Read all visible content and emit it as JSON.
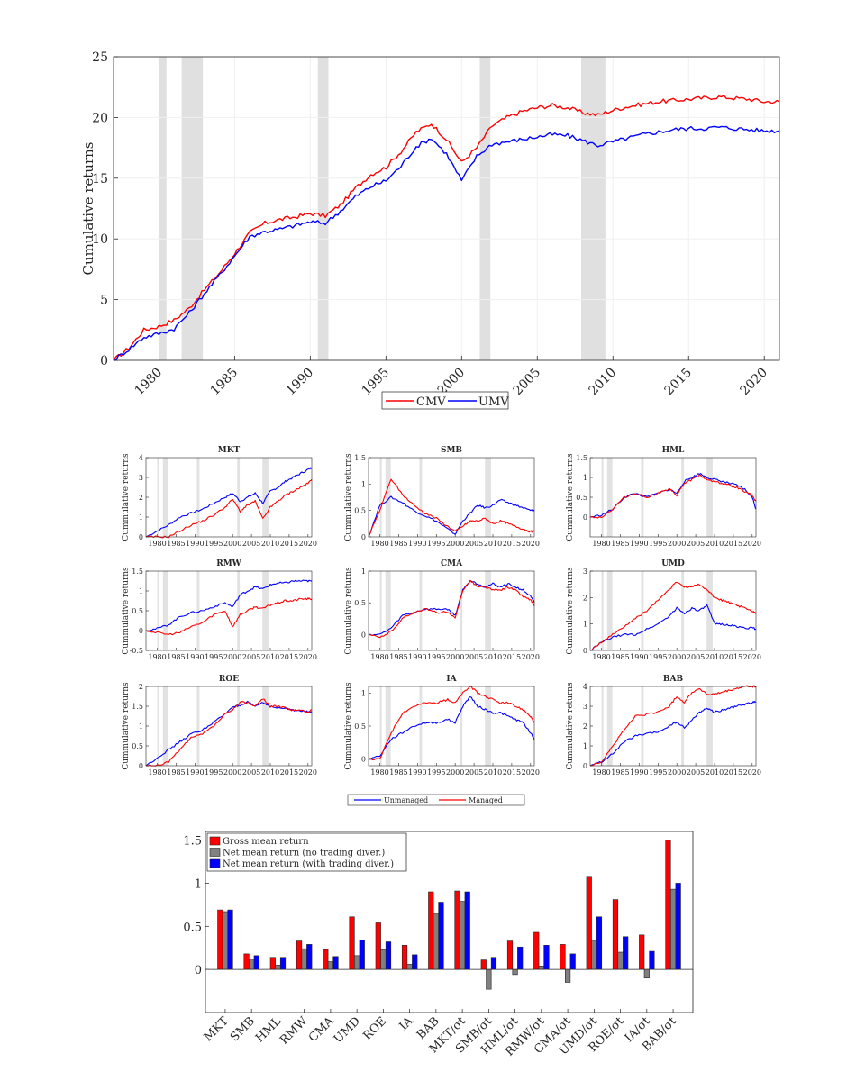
{
  "chart_data": [
    {
      "id": "top",
      "type": "line",
      "title": "",
      "xlabel": "",
      "ylabel": "Cumulative returns",
      "xlim": [
        1977,
        2021
      ],
      "ylim": [
        0,
        25
      ],
      "xticks": [
        "1980",
        "1985",
        "1990",
        "1995",
        "2000",
        "2005",
        "2010",
        "2015",
        "2020"
      ],
      "yticks": [
        "0",
        "5",
        "10",
        "15",
        "20",
        "25"
      ],
      "legend_position": "bottom-center",
      "recessions": [
        [
          1980.0,
          1980.5
        ],
        [
          1981.5,
          1982.9
        ],
        [
          1990.5,
          1991.2
        ],
        [
          2001.2,
          2001.9
        ],
        [
          2007.9,
          2009.5
        ]
      ],
      "series": [
        {
          "name": "CMV",
          "color": "#ff0000",
          "x": [
            1977,
            1978,
            1979,
            1980,
            1981,
            1982,
            1983,
            1984,
            1985,
            1986,
            1987,
            1988,
            1989,
            1990,
            1991,
            1992,
            1993,
            1994,
            1995,
            1996,
            1997,
            1998,
            1999,
            2000,
            2001,
            2002,
            2003,
            2004,
            2005,
            2006,
            2007,
            2008,
            2009,
            2010,
            2011,
            2012,
            2013,
            2014,
            2015,
            2016,
            2017,
            2018,
            2019,
            2020,
            2021
          ],
          "values": [
            0,
            1.0,
            2.5,
            2.8,
            3.3,
            4.3,
            5.8,
            7.2,
            8.8,
            10.5,
            11.3,
            11.6,
            11.8,
            12.1,
            11.9,
            12.8,
            14.2,
            15.3,
            15.9,
            17.2,
            18.8,
            19.5,
            18.2,
            16.3,
            17.5,
            19.3,
            20.0,
            20.5,
            20.8,
            21.0,
            20.8,
            20.4,
            20.2,
            20.6,
            20.9,
            21.1,
            21.3,
            21.4,
            21.5,
            21.6,
            21.7,
            21.6,
            21.5,
            21.3,
            21.3
          ]
        },
        {
          "name": "UMV",
          "color": "#0000ff",
          "x": [
            1977,
            1978,
            1979,
            1980,
            1981,
            1982,
            1983,
            1984,
            1985,
            1986,
            1987,
            1988,
            1989,
            1990,
            1991,
            1992,
            1993,
            1994,
            1995,
            1996,
            1997,
            1998,
            1999,
            2000,
            2001,
            2002,
            2003,
            2004,
            2005,
            2006,
            2007,
            2008,
            2009,
            2010,
            2011,
            2012,
            2013,
            2014,
            2015,
            2016,
            2017,
            2018,
            2019,
            2020,
            2021
          ],
          "values": [
            0,
            0.9,
            1.9,
            2.2,
            2.6,
            3.9,
            5.5,
            7.0,
            8.6,
            10.2,
            10.6,
            10.8,
            11.1,
            11.4,
            11.3,
            12.3,
            13.5,
            14.3,
            14.8,
            16.0,
            17.6,
            18.3,
            17.0,
            14.8,
            16.8,
            17.8,
            18.0,
            18.2,
            18.4,
            18.6,
            18.5,
            18.1,
            17.7,
            18.0,
            18.3,
            18.6,
            18.8,
            19.0,
            19.1,
            19.1,
            19.2,
            19.1,
            19.0,
            18.9,
            18.9
          ]
        }
      ]
    },
    {
      "id": "panels",
      "type": "line",
      "ylabel": "Cummulative returns",
      "xlim": [
        1977,
        2021
      ],
      "xticks": [
        "1980",
        "1985",
        "1990",
        "1995",
        "2000",
        "2005",
        "2010",
        "2015",
        "2020"
      ],
      "recessions": [
        [
          1980.0,
          1980.5
        ],
        [
          1981.5,
          1982.9
        ],
        [
          1990.5,
          1991.2
        ],
        [
          2001.2,
          2001.9
        ],
        [
          2007.9,
          2009.5
        ]
      ],
      "legend": [
        {
          "name": "Unmanaged",
          "color": "#0000ff"
        },
        {
          "name": "Managed",
          "color": "#ff0000"
        }
      ],
      "years": [
        1977,
        1980,
        1983,
        1986,
        1989,
        1992,
        1995,
        1998,
        2000,
        2002,
        2004,
        2006,
        2008,
        2010,
        2012,
        2014,
        2016,
        2018,
        2020,
        2021
      ],
      "panels": [
        {
          "title": "MKT",
          "ylim": [
            0,
            4
          ],
          "yticks": [
            "0",
            "1",
            "2",
            "3",
            "4"
          ],
          "unmanaged": [
            0,
            0.3,
            0.6,
            1.0,
            1.2,
            1.4,
            1.7,
            2.0,
            2.2,
            1.8,
            2.0,
            2.2,
            1.7,
            2.3,
            2.5,
            2.8,
            3.0,
            3.2,
            3.4,
            3.5
          ],
          "managed": [
            0,
            0,
            0,
            0.3,
            0.6,
            0.8,
            1.1,
            1.5,
            1.9,
            1.3,
            1.6,
            1.8,
            0.9,
            1.5,
            1.8,
            2.1,
            2.3,
            2.5,
            2.7,
            2.9
          ]
        },
        {
          "title": "SMB",
          "ylim": [
            0,
            1.5
          ],
          "yticks": [
            "0",
            "0.5",
            "1",
            "1.5"
          ],
          "unmanaged": [
            0,
            0.6,
            0.75,
            0.65,
            0.5,
            0.4,
            0.3,
            0.15,
            0.05,
            0.3,
            0.45,
            0.6,
            0.55,
            0.6,
            0.7,
            0.65,
            0.6,
            0.55,
            0.5,
            0.5
          ],
          "managed": [
            0,
            0.5,
            1.1,
            0.8,
            0.6,
            0.45,
            0.35,
            0.2,
            0.1,
            0.2,
            0.3,
            0.3,
            0.35,
            0.25,
            0.3,
            0.25,
            0.2,
            0.15,
            0.1,
            0.1
          ]
        },
        {
          "title": "HML",
          "ylim": [
            -0.5,
            1.5
          ],
          "yticks": [
            "0",
            "0.5",
            "1",
            "1.5"
          ],
          "unmanaged": [
            0,
            0.05,
            0.2,
            0.5,
            0.6,
            0.5,
            0.6,
            0.7,
            0.6,
            0.9,
            1.0,
            1.1,
            1.0,
            0.95,
            0.9,
            0.85,
            0.8,
            0.7,
            0.5,
            0.2
          ],
          "managed": [
            0,
            0,
            0.2,
            0.5,
            0.6,
            0.5,
            0.6,
            0.7,
            0.55,
            0.85,
            0.95,
            1.05,
            0.95,
            0.9,
            0.85,
            0.8,
            0.75,
            0.65,
            0.55,
            0.4
          ]
        },
        {
          "title": "RMW",
          "ylim": [
            -0.5,
            1.5
          ],
          "yticks": [
            "-0.5",
            "0",
            "0.5",
            "1",
            "1.5"
          ],
          "unmanaged": [
            0,
            0.05,
            0.15,
            0.35,
            0.45,
            0.5,
            0.6,
            0.7,
            0.6,
            0.9,
            1.0,
            1.1,
            1.05,
            1.15,
            1.2,
            1.2,
            1.25,
            1.25,
            1.25,
            1.25
          ],
          "managed": [
            0,
            -0.05,
            -0.1,
            -0.05,
            0.1,
            0.2,
            0.4,
            0.5,
            0.1,
            0.4,
            0.5,
            0.6,
            0.55,
            0.65,
            0.7,
            0.75,
            0.75,
            0.8,
            0.8,
            0.8
          ]
        },
        {
          "title": "CMA",
          "ylim": [
            -0.25,
            1
          ],
          "yticks": [
            "0",
            "0.5",
            "1"
          ],
          "unmanaged": [
            0,
            0,
            0.1,
            0.3,
            0.35,
            0.4,
            0.4,
            0.4,
            0.3,
            0.7,
            0.85,
            0.8,
            0.75,
            0.8,
            0.75,
            0.8,
            0.75,
            0.7,
            0.6,
            0.5
          ],
          "managed": [
            0,
            -0.05,
            0.05,
            0.25,
            0.35,
            0.4,
            0.35,
            0.35,
            0.25,
            0.7,
            0.85,
            0.75,
            0.75,
            0.7,
            0.7,
            0.75,
            0.7,
            0.6,
            0.55,
            0.45
          ]
        },
        {
          "title": "UMD",
          "ylim": [
            0,
            3
          ],
          "yticks": [
            "0",
            "1",
            "2",
            "3"
          ],
          "unmanaged": [
            0,
            0.3,
            0.5,
            0.6,
            0.6,
            0.8,
            1.0,
            1.3,
            1.6,
            1.4,
            1.6,
            1.5,
            1.7,
            1.0,
            1.0,
            0.95,
            0.9,
            0.85,
            0.85,
            0.8
          ],
          "managed": [
            0,
            0.3,
            0.6,
            0.9,
            1.2,
            1.5,
            1.9,
            2.3,
            2.6,
            2.4,
            2.4,
            2.5,
            2.3,
            2.0,
            1.9,
            1.8,
            1.7,
            1.6,
            1.5,
            1.4
          ]
        },
        {
          "title": "ROE",
          "ylim": [
            0,
            2
          ],
          "yticks": [
            "0",
            "0.5",
            "1",
            "1.5",
            "2"
          ],
          "unmanaged": [
            0,
            0.2,
            0.4,
            0.6,
            0.8,
            0.9,
            1.1,
            1.3,
            1.5,
            1.5,
            1.6,
            1.5,
            1.6,
            1.5,
            1.45,
            1.45,
            1.4,
            1.4,
            1.35,
            1.35
          ],
          "managed": [
            0,
            0,
            0.1,
            0.4,
            0.7,
            0.8,
            1.0,
            1.3,
            1.4,
            1.6,
            1.6,
            1.5,
            1.7,
            1.5,
            1.5,
            1.45,
            1.4,
            1.4,
            1.35,
            1.4
          ]
        },
        {
          "title": "IA",
          "ylim": [
            -0.1,
            1.1
          ],
          "yticks": [
            "0",
            "0.5",
            "1"
          ],
          "unmanaged": [
            0,
            0.05,
            0.3,
            0.4,
            0.5,
            0.55,
            0.55,
            0.6,
            0.55,
            0.8,
            0.95,
            0.8,
            0.75,
            0.7,
            0.7,
            0.65,
            0.6,
            0.55,
            0.4,
            0.3
          ],
          "managed": [
            0,
            0,
            0.4,
            0.7,
            0.8,
            0.85,
            0.85,
            0.9,
            0.85,
            1.0,
            1.1,
            1.0,
            0.95,
            0.9,
            0.85,
            0.85,
            0.8,
            0.75,
            0.65,
            0.55
          ]
        },
        {
          "title": "BAB",
          "ylim": [
            0,
            4
          ],
          "yticks": [
            "0",
            "1",
            "2",
            "3",
            "4"
          ],
          "unmanaged": [
            0,
            0.2,
            0.6,
            1.2,
            1.5,
            1.6,
            1.7,
            2.0,
            2.2,
            1.9,
            2.3,
            2.7,
            2.9,
            2.7,
            2.8,
            2.9,
            3.0,
            3.1,
            3.2,
            3.2
          ],
          "managed": [
            0,
            0.2,
            1.0,
            1.8,
            2.5,
            2.6,
            2.7,
            3.0,
            3.5,
            3.2,
            3.7,
            3.9,
            3.6,
            3.6,
            3.7,
            3.8,
            3.9,
            4.0,
            4.0,
            4.0
          ]
        }
      ]
    },
    {
      "id": "bars",
      "type": "bar",
      "ylim": [
        -0.5,
        1.6
      ],
      "yticks": [
        "0",
        "0.5",
        "1",
        "1.5"
      ],
      "categories": [
        "MKT",
        "SMB",
        "HML",
        "RMW",
        "CMA",
        "UMD",
        "ROE",
        "IA",
        "BAB",
        "MKT/σt",
        "SMB/σt",
        "HML/σt",
        "RMW/σt",
        "CMA/σt",
        "UMD/σt",
        "ROE/σt",
        "IA/σt",
        "BAB/σt"
      ],
      "legend_position": "top-left",
      "series": [
        {
          "name": "Gross mean return",
          "color": "#ff0000",
          "values": [
            0.69,
            0.18,
            0.14,
            0.33,
            0.23,
            0.61,
            0.54,
            0.28,
            0.9,
            0.91,
            0.11,
            0.33,
            0.43,
            0.29,
            1.08,
            0.81,
            0.4,
            1.5
          ]
        },
        {
          "name": "Net mean return (no trading diver.)",
          "color": "#808080",
          "values": [
            0.67,
            0.11,
            0.05,
            0.24,
            0.09,
            0.16,
            0.23,
            0.06,
            0.65,
            0.79,
            -0.23,
            -0.06,
            0.04,
            -0.15,
            0.33,
            0.2,
            -0.1,
            0.93
          ]
        },
        {
          "name": "Net mean return (with trading diver.)",
          "color": "#0000ff",
          "values": [
            0.69,
            0.16,
            0.14,
            0.29,
            0.15,
            0.34,
            0.32,
            0.17,
            0.78,
            0.9,
            0.14,
            0.26,
            0.28,
            0.18,
            0.61,
            0.38,
            0.21,
            1.0
          ]
        }
      ]
    }
  ]
}
